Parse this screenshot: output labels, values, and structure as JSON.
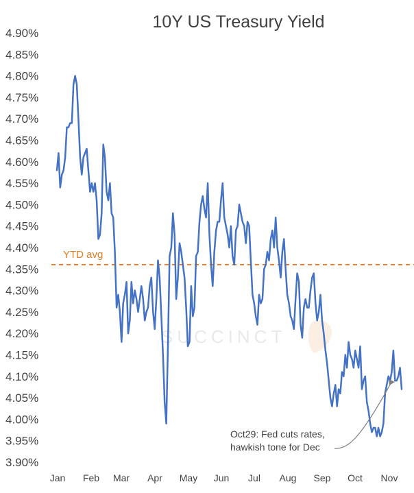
{
  "chart_data": {
    "type": "line",
    "title": "10Y US Treasury Yield",
    "ylim": [
      3.9,
      4.9
    ],
    "y_tick_labels": [
      "4.90%",
      "4.85%",
      "4.80%",
      "4.75%",
      "4.70%",
      "4.65%",
      "4.60%",
      "4.55%",
      "4.50%",
      "4.45%",
      "4.40%",
      "4.35%",
      "4.30%",
      "4.25%",
      "4.20%",
      "4.15%",
      "4.10%",
      "4.05%",
      "4.00%",
      "3.95%",
      "3.90%"
    ],
    "x_tick_labels": [
      "Jan",
      "Feb",
      "Mar",
      "Apr",
      "May",
      "Jun",
      "Jul",
      "Aug",
      "Sep",
      "Oct",
      "Nov"
    ],
    "grid": false,
    "legend": "none",
    "line_color": "#4472c4",
    "avg_color": "#ed7d31",
    "ytd_avg": {
      "label": "YTD avg",
      "value": 4.36
    },
    "annotation": {
      "lines": [
        "Oct29: Fed cuts rates,",
        "hawkish tone for Dec"
      ],
      "point_index": 201
    },
    "watermark": "SUCCINCT",
    "series": [
      {
        "values": [
          4.58,
          4.62,
          4.54,
          4.57,
          4.58,
          4.61,
          4.68,
          4.68,
          4.69,
          4.69,
          4.78,
          4.8,
          4.78,
          4.7,
          4.61,
          4.57,
          4.61,
          4.62,
          4.63,
          4.58,
          4.53,
          4.55,
          4.53,
          4.55,
          4.51,
          4.42,
          4.43,
          4.48,
          4.64,
          4.61,
          4.53,
          4.51,
          4.55,
          4.48,
          4.47,
          4.39,
          4.26,
          4.29,
          4.25,
          4.18,
          4.27,
          4.29,
          4.32,
          4.2,
          4.23,
          4.32,
          4.27,
          4.3,
          4.28,
          4.25,
          4.28,
          4.31,
          4.28,
          4.23,
          4.25,
          4.26,
          4.31,
          4.33,
          4.25,
          4.21,
          4.28,
          4.37,
          4.33,
          4.24,
          4.15,
          4.04,
          3.99,
          4.17,
          4.38,
          4.4,
          4.48,
          4.43,
          4.28,
          4.33,
          4.41,
          4.39,
          4.36,
          4.33,
          4.26,
          4.17,
          4.18,
          4.31,
          4.24,
          4.26,
          4.38,
          4.39,
          4.46,
          4.5,
          4.52,
          4.49,
          4.47,
          4.55,
          4.43,
          4.36,
          4.31,
          4.39,
          4.44,
          4.46,
          4.46,
          4.51,
          4.55,
          4.47,
          4.45,
          4.43,
          4.4,
          4.45,
          4.38,
          4.36,
          4.44,
          4.45,
          4.5,
          4.48,
          4.46,
          4.45,
          4.41,
          4.46,
          4.45,
          4.37,
          4.29,
          4.27,
          4.24,
          4.22,
          4.29,
          4.27,
          4.28,
          4.35,
          4.36,
          4.39,
          4.37,
          4.42,
          4.44,
          4.4,
          4.47,
          4.4,
          4.37,
          4.33,
          4.39,
          4.42,
          4.35,
          4.29,
          4.27,
          4.24,
          4.23,
          4.21,
          4.28,
          4.34,
          4.32,
          4.22,
          4.19,
          4.26,
          4.28,
          4.26,
          4.26,
          4.3,
          4.33,
          4.34,
          4.27,
          4.23,
          4.25,
          4.29,
          4.23,
          4.2,
          4.16,
          4.13,
          4.09,
          4.05,
          4.03,
          4.06,
          4.08,
          4.03,
          4.07,
          4.06,
          4.11,
          4.1,
          4.15,
          4.12,
          4.18,
          4.15,
          4.14,
          4.12,
          4.16,
          4.14,
          4.12,
          4.17,
          4.07,
          4.09,
          4.1,
          4.04,
          4.02,
          3.99,
          3.97,
          3.98,
          3.98,
          3.96,
          3.98,
          3.96,
          3.97,
          3.99,
          4.06,
          4.08,
          4.1,
          4.09,
          4.11,
          4.16,
          4.09,
          4.09,
          4.1,
          4.12,
          4.07
        ]
      }
    ]
  }
}
